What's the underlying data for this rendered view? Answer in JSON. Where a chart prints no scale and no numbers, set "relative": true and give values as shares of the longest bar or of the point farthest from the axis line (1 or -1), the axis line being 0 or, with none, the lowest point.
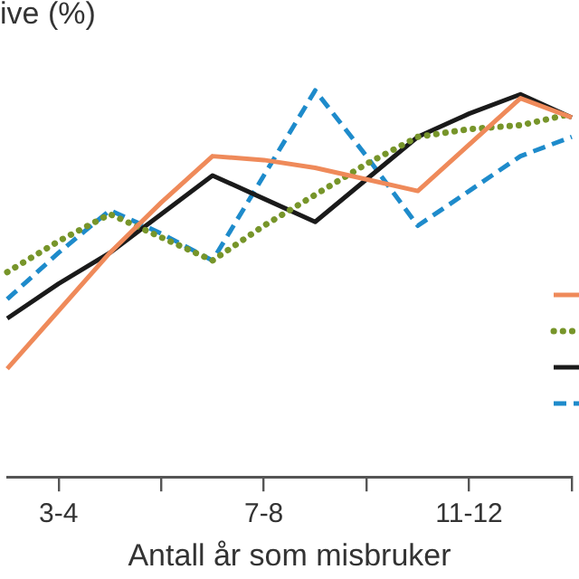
{
  "chart_data": {
    "type": "line",
    "relative": true,
    "ylabel": "ive (%)",
    "xlabel": "Antall år som misbruker",
    "categories": [
      null,
      "3-4",
      null,
      null,
      null,
      "7-8",
      null,
      null,
      null,
      "11-12",
      null,
      null
    ],
    "series": [
      {
        "color": "#ef8a5a",
        "line_style": "solid",
        "values": [
          0.28,
          0.43,
          0.58,
          0.71,
          0.83,
          0.82,
          0.8,
          0.77,
          0.74,
          0.86,
          0.98,
          0.93
        ]
      },
      {
        "color": "#77952a",
        "line_style": "dotted",
        "values": [
          0.53,
          0.61,
          0.68,
          0.62,
          0.56,
          0.65,
          0.73,
          0.81,
          0.88,
          0.9,
          0.91,
          0.94
        ]
      },
      {
        "color": "#1a1a1a",
        "line_style": "solid",
        "values": [
          0.41,
          0.5,
          0.58,
          0.68,
          0.78,
          0.72,
          0.66,
          0.77,
          0.88,
          0.94,
          0.99,
          0.93
        ]
      },
      {
        "color": "#1e8bcb",
        "line_style": "dashed",
        "values": [
          0.46,
          0.58,
          0.69,
          0.63,
          0.56,
          0.78,
          1,
          0.83,
          0.65,
          0.74,
          0.83,
          0.88
        ]
      }
    ],
    "marker": "none",
    "grid": false
  }
}
